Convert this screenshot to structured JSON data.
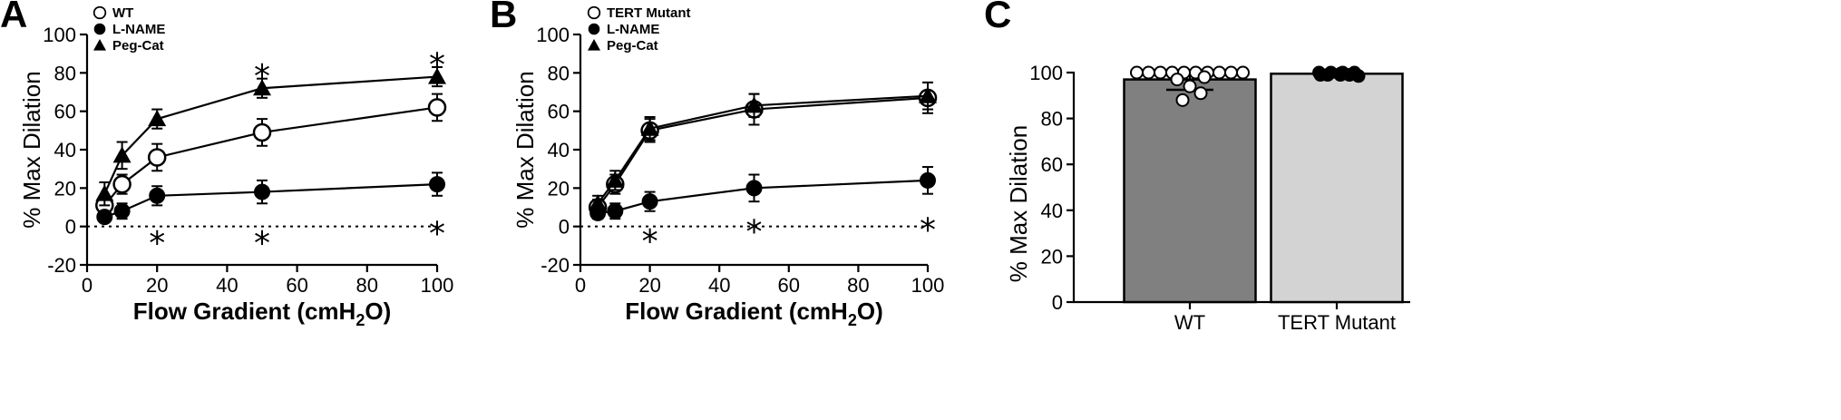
{
  "chart_data": [
    {
      "panel": "A",
      "type": "line",
      "xlabel_main": "Flow Gradient (cmH",
      "xlabel_sub": "2",
      "xlabel_end": "O)",
      "ylabel": "% Max Dilation",
      "xlim": [
        0,
        100
      ],
      "ylim": [
        -20,
        100
      ],
      "xticks": [
        0,
        20,
        40,
        60,
        80,
        100
      ],
      "yticks": [
        -20,
        0,
        20,
        40,
        60,
        80,
        100
      ],
      "legend_position": "top-left",
      "x": [
        5,
        10,
        20,
        50,
        100
      ],
      "series": [
        {
          "name": "WT",
          "marker": "open-circle",
          "values": [
            11,
            22,
            36,
            49,
            62
          ],
          "errors": [
            3,
            5,
            7,
            7,
            7
          ]
        },
        {
          "name": "L-NAME",
          "marker": "filled-circle",
          "values": [
            5,
            8,
            16,
            18,
            22
          ],
          "errors": [
            2,
            4,
            5,
            6,
            6
          ]
        },
        {
          "name": "Peg-Cat",
          "marker": "filled-triangle",
          "values": [
            17,
            37,
            56,
            72,
            78
          ],
          "errors": [
            6,
            7,
            5,
            5,
            5
          ]
        }
      ],
      "annotations": [
        {
          "text": "*",
          "x": 50,
          "y": 83
        },
        {
          "text": "*",
          "x": 100,
          "y": 89
        },
        {
          "text": "*",
          "x": 20,
          "y": -4
        },
        {
          "text": "*",
          "x": 50,
          "y": -4
        },
        {
          "text": "*",
          "x": 100,
          "y": 1
        }
      ]
    },
    {
      "panel": "B",
      "type": "line",
      "xlabel_main": "Flow Gradient (cmH",
      "xlabel_sub": "2",
      "xlabel_end": "O)",
      "ylabel": "% Max Dilation",
      "xlim": [
        0,
        100
      ],
      "ylim": [
        -20,
        100
      ],
      "xticks": [
        0,
        20,
        40,
        60,
        80,
        100
      ],
      "yticks": [
        -20,
        0,
        20,
        40,
        60,
        80,
        100
      ],
      "legend_position": "top-left",
      "x": [
        5,
        10,
        20,
        50,
        100
      ],
      "series": [
        {
          "name": "TERT Mutant",
          "marker": "open-circle",
          "values": [
            10,
            22,
            50,
            61,
            67
          ],
          "errors": [
            4,
            5,
            6,
            8,
            8
          ]
        },
        {
          "name": "L-NAME",
          "marker": "filled-circle",
          "values": [
            7,
            8,
            13,
            20,
            24
          ],
          "errors": [
            3,
            4,
            5,
            7,
            7
          ]
        },
        {
          "name": "Peg-Cat",
          "marker": "filled-triangle",
          "values": [
            12,
            24,
            51,
            63,
            68
          ],
          "errors": [
            4,
            5,
            6,
            6,
            7
          ]
        }
      ],
      "annotations": [
        {
          "text": "*",
          "x": 20,
          "y": -3
        },
        {
          "text": "*",
          "x": 50,
          "y": 2
        },
        {
          "text": "*",
          "x": 100,
          "y": 3
        }
      ]
    },
    {
      "panel": "C",
      "type": "bar",
      "ylabel": "% Max Dilation",
      "ylim": [
        0,
        100
      ],
      "yticks": [
        0,
        20,
        40,
        60,
        80,
        100
      ],
      "categories": [
        "WT",
        "TERT Mutant"
      ],
      "values": [
        97,
        99.5
      ],
      "errors": [
        4.5,
        0.5
      ],
      "bar_colors": [
        "#808080",
        "#d3d3d3"
      ],
      "points": [
        [
          100,
          100,
          100,
          100,
          100,
          100,
          100,
          100,
          100,
          100,
          98,
          97,
          94,
          91,
          88
        ],
        [
          100,
          100,
          100,
          100,
          99.5,
          99,
          99,
          99,
          98.5,
          99
        ]
      ]
    }
  ]
}
